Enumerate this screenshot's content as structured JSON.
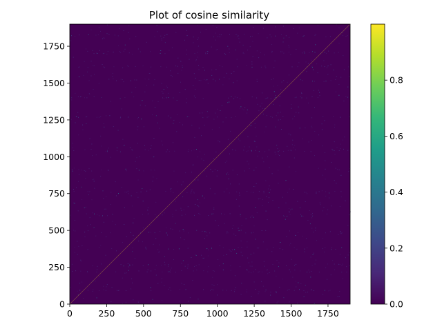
{
  "chart_data": {
    "type": "heatmap",
    "title": "Plot of cosine similarity",
    "xlabel": "",
    "ylabel": "",
    "x_range": [
      0,
      1900
    ],
    "y_range": [
      0,
      1900
    ],
    "x_ticks": [
      0,
      250,
      500,
      750,
      1000,
      1250,
      1500,
      1750
    ],
    "y_ticks": [
      0,
      250,
      500,
      750,
      1000,
      1250,
      1500,
      1750
    ],
    "colormap": "viridis",
    "colorbar": {
      "range": [
        0.0,
        1.0
      ],
      "ticks": [
        0.0,
        0.2,
        0.4,
        0.6,
        0.8
      ],
      "tick_labels": [
        "0.0",
        "0.2",
        "0.4",
        "0.6",
        "0.8"
      ]
    },
    "typical_value": 0.02,
    "sparse_high_values": "scattered faint bright speckles across the matrix",
    "colors": {
      "background_cell": "#440154",
      "colormap_stops": [
        "#440154",
        "#482878",
        "#3e4989",
        "#31688e",
        "#26828e",
        "#1f9e89",
        "#35b779",
        "#6ece58",
        "#b5de2b",
        "#fde725"
      ]
    }
  }
}
